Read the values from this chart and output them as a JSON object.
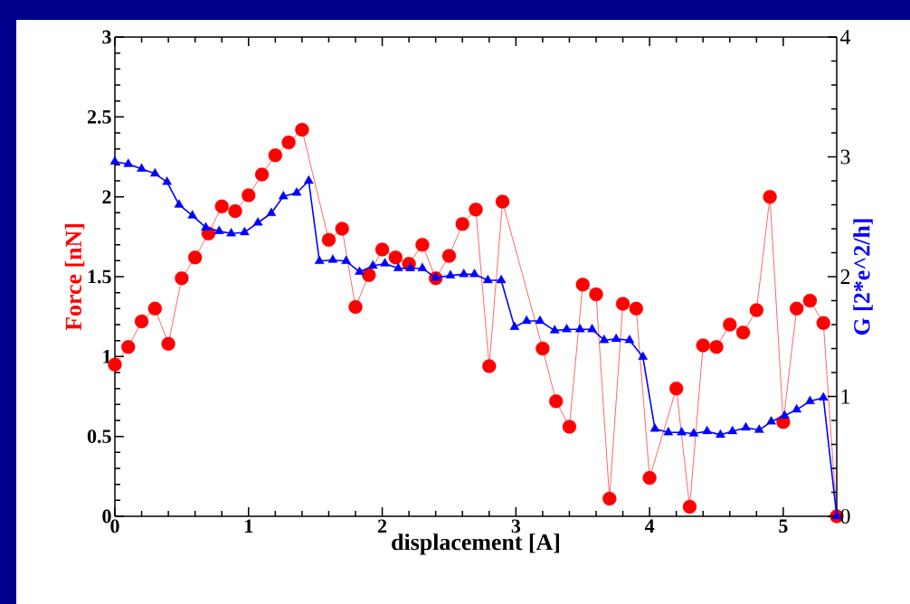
{
  "chart_data": {
    "type": "line",
    "xlabel": "displacement [A]",
    "ylabel": "Force [nN]",
    "y2label": "G [2*e^2/h]",
    "xlim": [
      0,
      5.4
    ],
    "xticks": [
      0,
      1,
      2,
      3,
      4,
      5
    ],
    "ylim": [
      0,
      3
    ],
    "yticks": [
      0,
      0.5,
      1,
      1.5,
      2,
      2.5,
      3
    ],
    "y2lim": [
      0,
      4
    ],
    "y2ticks": [
      0,
      1,
      2,
      3,
      4
    ],
    "series": [
      {
        "color": "#ff0000",
        "marker": "circle",
        "axis": "y",
        "x": [
          0,
          0.1,
          0.2,
          0.3,
          0.4,
          0.5,
          0.6,
          0.7,
          0.8,
          0.9,
          1.0,
          1.1,
          1.2,
          1.3,
          1.4,
          1.6,
          1.7,
          1.8,
          1.9,
          2.0,
          2.1,
          2.2,
          2.3,
          2.4,
          2.5,
          2.6,
          2.7,
          2.8,
          2.9,
          3.2,
          3.3,
          3.4,
          3.5,
          3.6,
          3.7,
          3.8,
          3.9,
          4.0,
          4.2,
          4.3,
          4.4,
          4.5,
          4.6,
          4.7,
          4.8,
          4.9,
          5.0,
          5.1,
          5.2,
          5.3,
          5.4
        ],
        "values": [
          0.95,
          1.06,
          1.22,
          1.3,
          1.08,
          1.49,
          1.62,
          1.77,
          1.94,
          1.91,
          2.01,
          2.14,
          2.26,
          2.34,
          2.42,
          1.73,
          1.8,
          1.31,
          1.51,
          1.67,
          1.62,
          1.58,
          1.7,
          1.49,
          1.63,
          1.83,
          1.92,
          0.94,
          1.97,
          1.05,
          0.72,
          0.56,
          1.45,
          1.39,
          0.11,
          1.33,
          1.3,
          0.24,
          0.8,
          0.06,
          1.07,
          1.06,
          1.2,
          1.15,
          1.29,
          2.0,
          0.59,
          1.3,
          1.35,
          1.21,
          0
        ]
      },
      {
        "color": "#0000ff",
        "marker": "triangle",
        "axis": "y2",
        "x": [
          0,
          0.1,
          0.2,
          0.3,
          0.39,
          0.48,
          0.58,
          0.68,
          0.78,
          0.87,
          0.97,
          1.07,
          1.17,
          1.26,
          1.36,
          1.45,
          1.53,
          1.63,
          1.73,
          1.83,
          1.93,
          2.02,
          2.12,
          2.21,
          2.3,
          2.4,
          2.51,
          2.61,
          2.69,
          2.79,
          2.89,
          2.99,
          3.08,
          3.18,
          3.29,
          3.38,
          3.48,
          3.57,
          3.66,
          3.75,
          3.85,
          3.95,
          4.04,
          4.14,
          4.24,
          4.33,
          4.43,
          4.53,
          4.62,
          4.72,
          4.82,
          4.91,
          5.01,
          5.1,
          5.2,
          5.3,
          5.4
        ],
        "values": [
          2.96,
          2.94,
          2.9,
          2.86,
          2.79,
          2.6,
          2.51,
          2.41,
          2.38,
          2.36,
          2.37,
          2.45,
          2.53,
          2.67,
          2.7,
          2.8,
          2.13,
          2.14,
          2.13,
          2.04,
          2.09,
          2.11,
          2.07,
          2.07,
          2.07,
          1.99,
          2.01,
          2.02,
          2.02,
          1.97,
          1.97,
          1.58,
          1.63,
          1.63,
          1.55,
          1.56,
          1.56,
          1.56,
          1.47,
          1.48,
          1.47,
          1.33,
          0.73,
          0.7,
          0.7,
          0.69,
          0.71,
          0.68,
          0.71,
          0.74,
          0.72,
          0.79,
          0.84,
          0.89,
          0.96,
          0.99,
          0
        ]
      }
    ]
  }
}
